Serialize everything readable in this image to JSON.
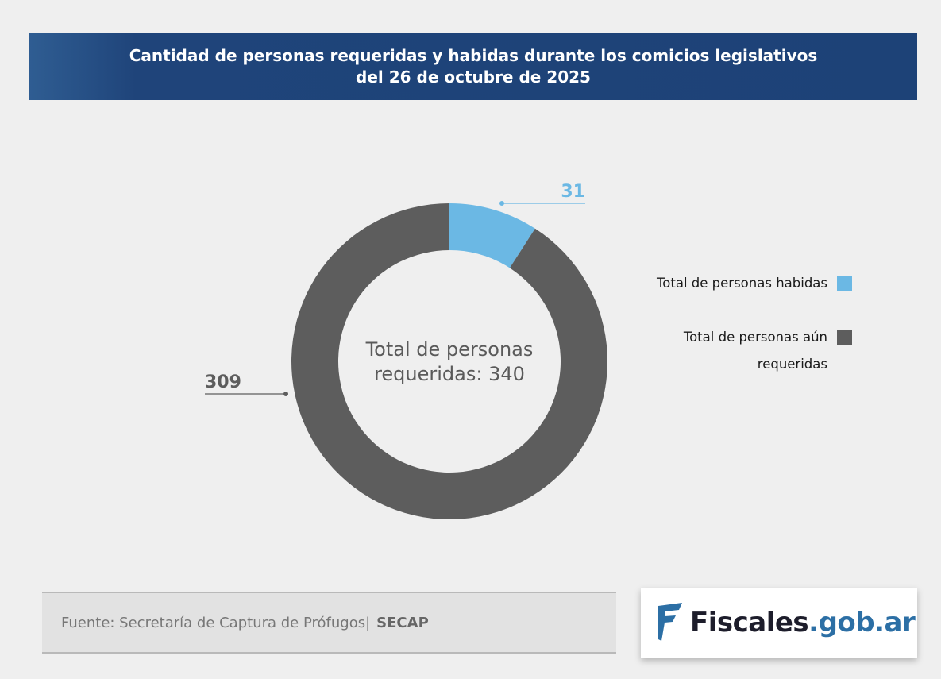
{
  "chart_data": {
    "type": "donut",
    "title": "Cantidad de personas requeridas y habidas durante los comicios legislativos del 26 de octubre de 2025",
    "center_label": "Total de personas requeridas: 340",
    "categories": [
      "Total de personas habidas",
      "Total de personas aún requeridas"
    ],
    "values": [
      31,
      309
    ],
    "colors": [
      "#6bb8e4",
      "#5d5d5d"
    ]
  },
  "footer": {
    "source": "Fuente: Secretaría de Captura de Prófugos|",
    "source_org": "SECAP",
    "logo": {
      "name": "Fiscales",
      "domain": ".gob.ar"
    }
  }
}
